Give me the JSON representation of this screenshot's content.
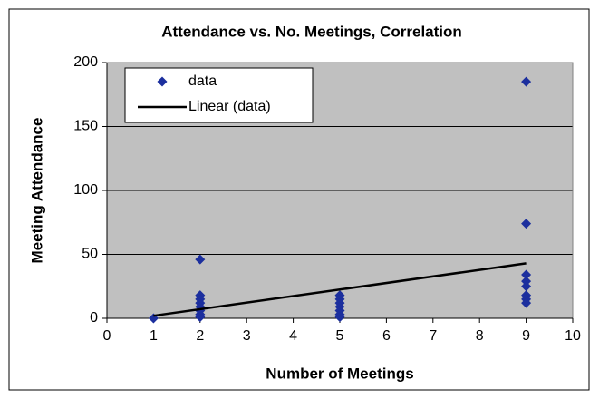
{
  "chart_data": {
    "type": "scatter",
    "title": "Attendance vs. No. Meetings, Correlation",
    "x_label": "Number of Meetings",
    "y_label": "Meeting Attendance",
    "series": [
      {
        "name": "data",
        "color": "#1c2f9e",
        "marker": "diamond",
        "x": [
          1,
          2,
          2,
          2,
          2,
          2,
          2,
          2,
          2,
          5,
          5,
          5,
          5,
          5,
          5,
          5,
          9,
          9,
          9,
          9,
          9,
          9,
          9,
          9
        ],
        "values": [
          0,
          46,
          18,
          15,
          12,
          9,
          6,
          3,
          1,
          18,
          15,
          12,
          9,
          6,
          3,
          1,
          185,
          74,
          34,
          29,
          25,
          18,
          15,
          12
        ]
      },
      {
        "name": "Linear (data)",
        "color": "#000000",
        "type": "line",
        "x": [
          1,
          9
        ],
        "values": [
          2,
          43
        ]
      }
    ],
    "xlim": [
      0,
      10
    ],
    "xticks": [
      0,
      1,
      2,
      3,
      4,
      5,
      6,
      7,
      8,
      9,
      10
    ],
    "ylim": [
      0,
      200
    ],
    "yticks": [
      0,
      50,
      100,
      150,
      200
    ],
    "grid": true,
    "legend": "upper left"
  }
}
